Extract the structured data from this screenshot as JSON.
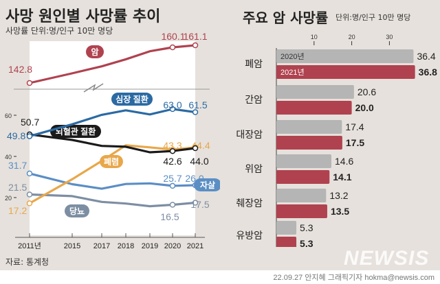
{
  "left": {
    "title": "사망 원인별 사망률 추이",
    "subtitle": "사망률 단위:명/인구 10만 명당",
    "source": "자료: 통계청"
  },
  "right": {
    "title": "주요 암 사망률",
    "unit": "단위:명/인구 10만 명당"
  },
  "footer": "22.09.27 안지혜 그래픽기자 hokma@newsis.com",
  "watermark": "NEWSIS",
  "chart_data": [
    {
      "type": "line",
      "title": "사망 원인별 사망률 추이",
      "x": [
        "2011년",
        "2015",
        "2017",
        "2018",
        "2019",
        "2020",
        "2021"
      ],
      "y_ticks": [
        "20",
        "40",
        "60"
      ],
      "axis_break": true,
      "series": [
        {
          "name": "암",
          "color": "#b0424f",
          "values": [
            142.8,
            147.5,
            150.9,
            154.3,
            158.2,
            160.1,
            161.1
          ],
          "labels": {
            "0": "142.8",
            "5": "160.1",
            "6": "161.1"
          }
        },
        {
          "name": "심장 질환",
          "color": "#2b6aa3",
          "values": [
            49.8,
            55.6,
            60.2,
            62.4,
            60.4,
            63.0,
            61.5
          ],
          "labels": {
            "0": "49.8",
            "5": "63.0",
            "6": "61.5"
          }
        },
        {
          "name": "뇌혈관 질환",
          "color": "#1a1a1a",
          "values": [
            50.7,
            48.0,
            45.1,
            44.7,
            42.0,
            42.6,
            44.0
          ],
          "labels": {
            "0": "50.7",
            "5": "42.6",
            "6": "44.0"
          }
        },
        {
          "name": "폐렴",
          "color": "#e8a74a",
          "values": [
            17.2,
            28.9,
            37.8,
            45.4,
            44.4,
            43.3,
            44.4
          ],
          "labels": {
            "0": "17.2",
            "5": "43.3",
            "6": "44.4"
          }
        },
        {
          "name": "자살",
          "color": "#5b8ec4",
          "values": [
            31.7,
            26.5,
            24.3,
            26.6,
            26.9,
            25.7,
            26.0
          ],
          "labels": {
            "0": "31.7",
            "5": "25.7",
            "6": "26.0"
          }
        },
        {
          "name": "당뇨",
          "color": "#7d8ea3",
          "values": [
            21.5,
            20.7,
            17.9,
            17.1,
            15.8,
            16.5,
            17.5
          ],
          "labels": {
            "0": "21.5",
            "5": "16.5",
            "6": "17.5"
          }
        }
      ]
    },
    {
      "type": "bar",
      "title": "주요 암 사망률",
      "categories": [
        "폐암",
        "간암",
        "대장암",
        "위암",
        "췌장암",
        "유방암"
      ],
      "x_ticks": [
        "10",
        "20",
        "30"
      ],
      "xlim": [
        0,
        40
      ],
      "series": [
        {
          "name": "2020년",
          "color": "#b5b5b5",
          "values": [
            36.4,
            20.6,
            17.4,
            14.6,
            13.2,
            5.3
          ]
        },
        {
          "name": "2021년",
          "color": "#b0424f",
          "values": [
            36.8,
            20.0,
            17.5,
            14.1,
            13.5,
            5.3
          ]
        }
      ]
    }
  ]
}
